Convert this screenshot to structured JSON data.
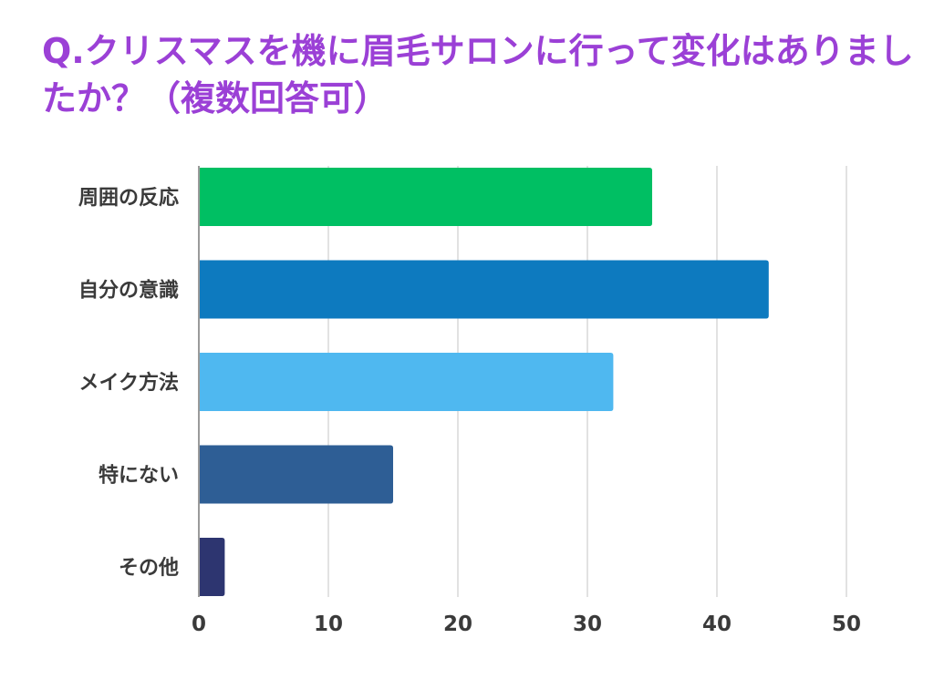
{
  "title": "Q.クリスマスを機に眉毛サロンに行って変化はありましたか？（複数回答可）",
  "colors": {
    "title": "#9b40d6",
    "grid": "#d9d9d9",
    "axis": "#9a9a9a",
    "label": "#3a3a3a"
  },
  "chart_data": {
    "type": "bar",
    "orientation": "horizontal",
    "title": "Q.クリスマスを機に眉毛サロンに行って変化はありましたか？（複数回答可）",
    "categories": [
      "周囲の反応",
      "自分の意識",
      "メイク方法",
      "特にない",
      "その他"
    ],
    "values": [
      35,
      44,
      32,
      15,
      2
    ],
    "bar_colors": [
      "#00bf63",
      "#0d7abf",
      "#4fb8f0",
      "#2e5e95",
      "#2d3570"
    ],
    "xlim": [
      0,
      50
    ],
    "xticks": [
      0,
      10,
      20,
      30,
      40,
      50
    ],
    "xlabel": "",
    "ylabel": "",
    "grid": true,
    "legend": "none"
  }
}
